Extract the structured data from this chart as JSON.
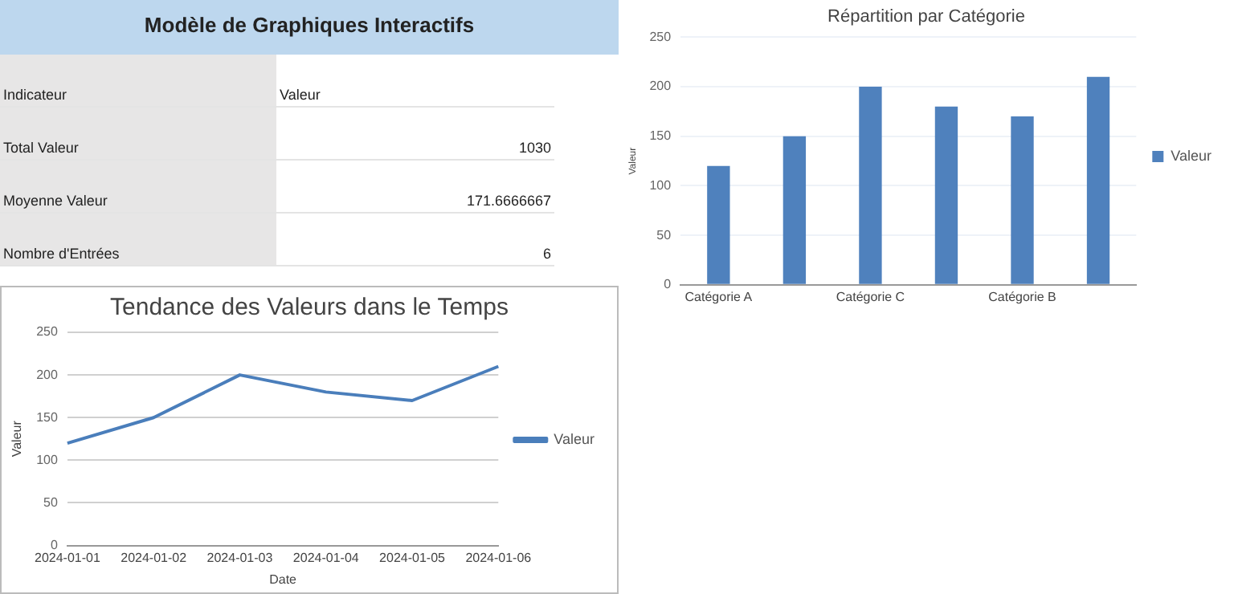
{
  "chart_data": [
    {
      "type": "other",
      "title": "Modèle de Graphiques Interactifs",
      "annotations": [
        "Indicateur",
        "Valeur",
        "Total Valeur",
        "1030",
        "Moyenne Valeur",
        "171.6666667",
        "Nombre d'Entrées",
        "6"
      ]
    },
    {
      "type": "bar",
      "title": "Répartition par Catégorie",
      "ylabel": "Valeur",
      "categories": [
        "Catégorie A",
        null,
        "Catégorie C",
        null,
        "Catégorie B",
        null
      ],
      "series": [
        {
          "name": "Valeur",
          "color": "#4f81bd",
          "values": [
            120,
            150,
            200,
            180,
            170,
            210
          ]
        }
      ],
      "ylim": [
        0,
        250
      ],
      "yticks": [
        0,
        50,
        100,
        150,
        200,
        250
      ],
      "grid": "y",
      "legend": "right"
    },
    {
      "type": "line",
      "title": "Tendance des Valeurs dans le Temps",
      "xlabel": "Date",
      "ylabel": "Valeur",
      "categories": [
        "2024-01-01",
        "2024-01-02",
        "2024-01-03",
        "2024-01-04",
        "2024-01-05",
        "2024-01-06"
      ],
      "series": [
        {
          "name": "Valeur",
          "color": "#4a7ebb",
          "values": [
            120,
            150,
            200,
            180,
            170,
            210
          ]
        }
      ],
      "ylim": [
        0,
        250
      ],
      "yticks": [
        0,
        50,
        100,
        150,
        200,
        250
      ],
      "grid": "y",
      "legend": "right",
      "marker": "none"
    }
  ]
}
